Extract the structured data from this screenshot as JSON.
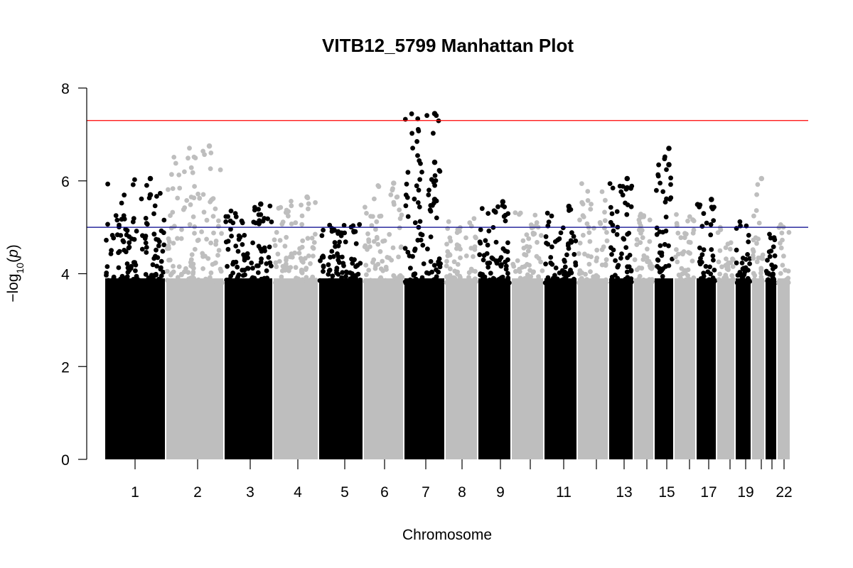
{
  "chart_data": {
    "type": "scatter",
    "subtype": "manhattan",
    "title": "VITB12_5799 Manhattan Plot",
    "xlabel": "Chromosome",
    "ylabel": "-log10(p)",
    "ylim": [
      0,
      8
    ],
    "y_ticks": [
      "0",
      "2",
      "4",
      "6",
      "8"
    ],
    "x_tick_labels": [
      "1",
      "2",
      "3",
      "4",
      "5",
      "6",
      "7",
      "8",
      "9",
      "11",
      "13",
      "15",
      "17",
      "19",
      "22"
    ],
    "colors": {
      "odd_chromosome": "#000000",
      "even_chromosome": "#bebebe",
      "genomewide_line": "#ff0000",
      "suggestive_line": "#00008b"
    },
    "thresholds": {
      "genomewide": 7.3,
      "suggestive": 5.0
    },
    "grid": false,
    "legend": "none",
    "chromosomes": [
      {
        "chr": 1,
        "label": "1",
        "color": "odd",
        "max": 6.05
      },
      {
        "chr": 2,
        "label": "2",
        "color": "even",
        "max": 6.75
      },
      {
        "chr": 3,
        "label": "3",
        "color": "odd",
        "max": 5.5
      },
      {
        "chr": 4,
        "label": "4",
        "color": "even",
        "max": 5.65
      },
      {
        "chr": 5,
        "label": "5",
        "color": "odd",
        "max": 5.15
      },
      {
        "chr": 6,
        "label": "6",
        "color": "even",
        "max": 5.95
      },
      {
        "chr": 7,
        "label": "7",
        "color": "odd",
        "max": 7.45
      },
      {
        "chr": 8,
        "label": "8",
        "color": "even",
        "max": 5.3
      },
      {
        "chr": 9,
        "label": "9",
        "color": "odd",
        "max": 5.55
      },
      {
        "chr": 10,
        "label": "",
        "color": "even",
        "max": 5.35
      },
      {
        "chr": 11,
        "label": "11",
        "color": "odd",
        "max": 5.45
      },
      {
        "chr": 12,
        "label": "",
        "color": "even",
        "max": 6.0
      },
      {
        "chr": 13,
        "label": "13",
        "color": "odd",
        "max": 6.05
      },
      {
        "chr": 14,
        "label": "",
        "color": "even",
        "max": 5.3
      },
      {
        "chr": 15,
        "label": "15",
        "color": "odd",
        "max": 6.7
      },
      {
        "chr": 16,
        "label": "",
        "color": "even",
        "max": 5.3
      },
      {
        "chr": 17,
        "label": "17",
        "color": "odd",
        "max": 5.6
      },
      {
        "chr": 18,
        "label": "",
        "color": "even",
        "max": 5.0
      },
      {
        "chr": 19,
        "label": "19",
        "color": "odd",
        "max": 5.2
      },
      {
        "chr": 20,
        "label": "",
        "color": "even",
        "max": 6.05
      },
      {
        "chr": 21,
        "label": "",
        "color": "odd",
        "max": 4.9
      },
      {
        "chr": 22,
        "label": "22",
        "color": "even",
        "max": 5.3
      }
    ],
    "notable_points": [
      {
        "chr": 7,
        "y": 7.45
      },
      {
        "chr": 7,
        "y": 6.4
      },
      {
        "chr": 2,
        "y": 6.75
      },
      {
        "chr": 15,
        "y": 6.7
      },
      {
        "chr": 15,
        "y": 6.35
      },
      {
        "chr": 1,
        "y": 6.05
      },
      {
        "chr": 13,
        "y": 6.05
      },
      {
        "chr": 20,
        "y": 6.05
      },
      {
        "chr": 6,
        "y": 5.95
      },
      {
        "chr": 13,
        "y": 5.85
      },
      {
        "chr": 1,
        "y": 5.7
      },
      {
        "chr": 4,
        "y": 5.65
      },
      {
        "chr": 17,
        "y": 5.6
      },
      {
        "chr": 7,
        "y": 5.6
      },
      {
        "chr": 9,
        "y": 5.55
      },
      {
        "chr": 3,
        "y": 5.5
      },
      {
        "chr": 11,
        "y": 5.45
      }
    ]
  }
}
